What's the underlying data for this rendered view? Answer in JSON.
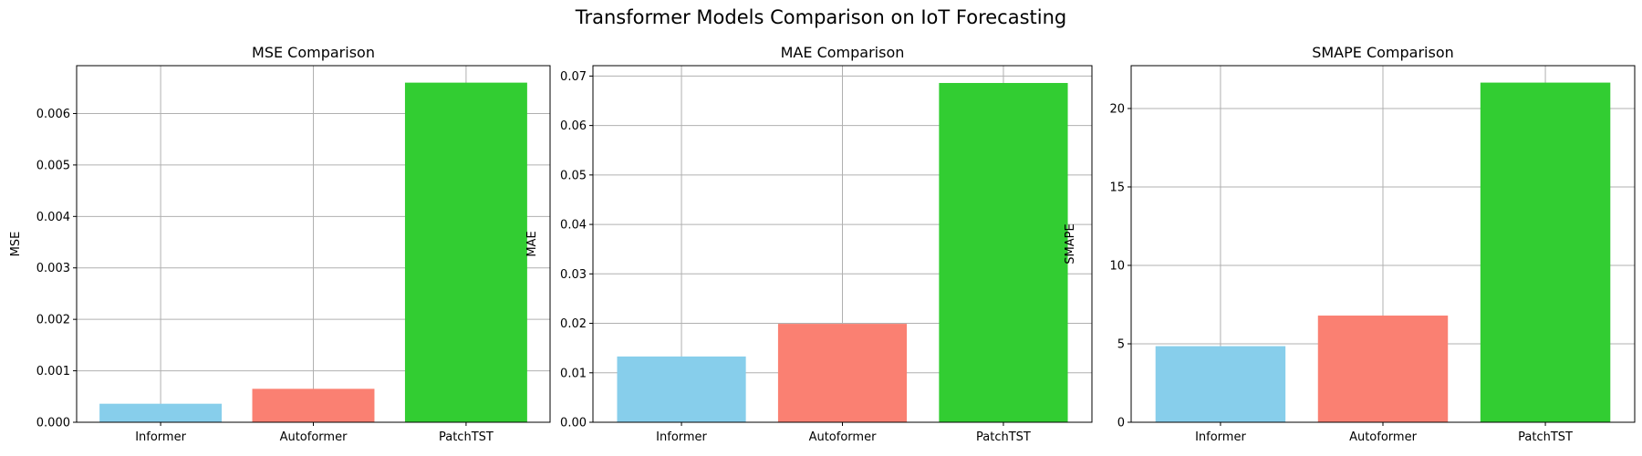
{
  "figure_title": "Transformer Models Comparison on IoT Forecasting",
  "chart_data": [
    {
      "type": "bar",
      "title": "MSE Comparison",
      "xlabel": "",
      "ylabel": "MSE",
      "categories": [
        "Informer",
        "Autoformer",
        "PatchTST"
      ],
      "values": [
        0.00036,
        0.00065,
        0.0066
      ],
      "colors": [
        "#87CEEB",
        "#FA8072",
        "#32CD32"
      ],
      "ylim": [
        0,
        0.00693
      ],
      "yticks": [
        0.0,
        0.001,
        0.002,
        0.003,
        0.004,
        0.005,
        0.006
      ],
      "ytick_labels": [
        "0.000",
        "0.001",
        "0.002",
        "0.003",
        "0.004",
        "0.005",
        "0.006"
      ],
      "grid": true
    },
    {
      "type": "bar",
      "title": "MAE Comparison",
      "xlabel": "",
      "ylabel": "MAE",
      "categories": [
        "Informer",
        "Autoformer",
        "PatchTST"
      ],
      "values": [
        0.0133,
        0.0199,
        0.0686
      ],
      "colors": [
        "#87CEEB",
        "#FA8072",
        "#32CD32"
      ],
      "ylim": [
        0,
        0.0721
      ],
      "yticks": [
        0.0,
        0.01,
        0.02,
        0.03,
        0.04,
        0.05,
        0.06,
        0.07
      ],
      "ytick_labels": [
        "0.00",
        "0.01",
        "0.02",
        "0.03",
        "0.04",
        "0.05",
        "0.06",
        "0.07"
      ],
      "grid": true
    },
    {
      "type": "bar",
      "title": "SMAPE Comparison",
      "xlabel": "",
      "ylabel": "SMAPE",
      "categories": [
        "Informer",
        "Autoformer",
        "PatchTST"
      ],
      "values": [
        4.85,
        6.8,
        21.65
      ],
      "colors": [
        "#87CEEB",
        "#FA8072",
        "#32CD32"
      ],
      "ylim": [
        0,
        22.73
      ],
      "yticks": [
        0,
        5,
        10,
        15,
        20
      ],
      "ytick_labels": [
        "0",
        "5",
        "10",
        "15",
        "20"
      ],
      "grid": true
    }
  ]
}
